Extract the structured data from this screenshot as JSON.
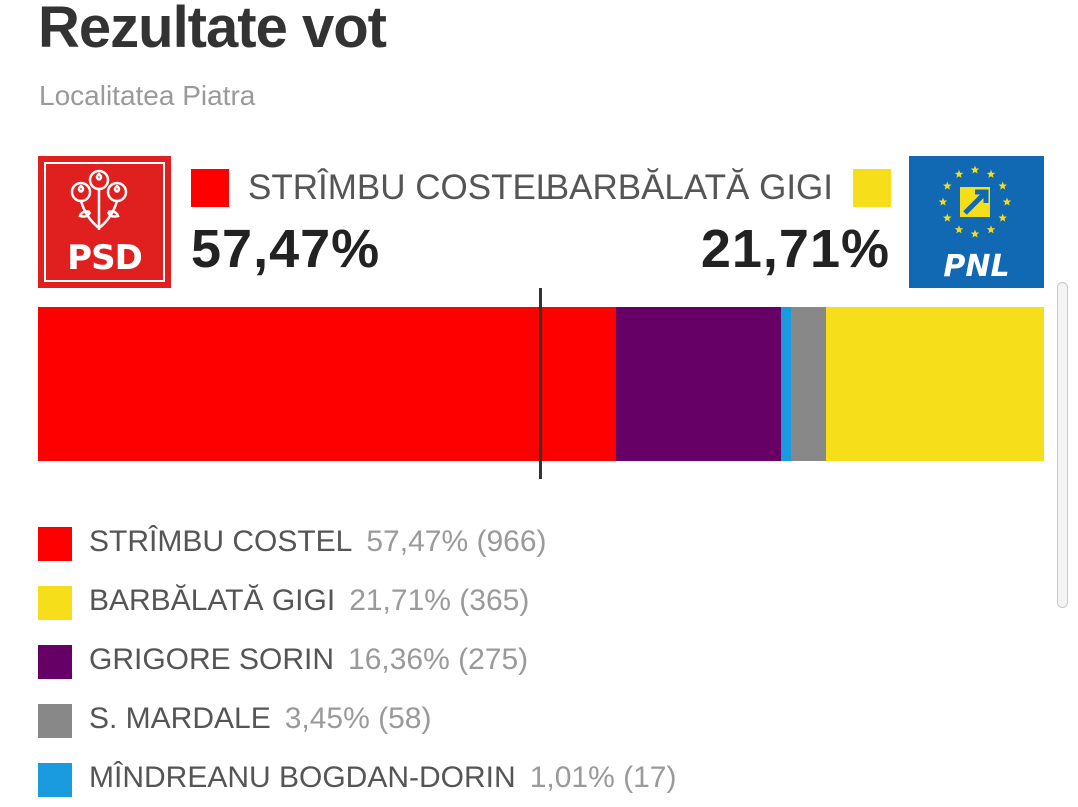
{
  "page": {
    "title": "Rezultate vot",
    "subtitle": "Localitatea Piatra"
  },
  "logos": {
    "left": {
      "text": "PSD",
      "color": "#e0201f",
      "icon": "roses-icon"
    },
    "right": {
      "text": "PNL",
      "color": "#1168b3",
      "icon": "eu-stars-arrow-icon"
    }
  },
  "headline": {
    "first": {
      "name": "STRÎMBU COSTEL",
      "percent": "57,47%",
      "color": "#ff0000"
    },
    "second": {
      "name": "BARBĂLATĂ GIGI",
      "percent": "21,71%",
      "color": "#f7de1a"
    }
  },
  "chart_data": {
    "type": "bar",
    "orientation": "horizontal-stacked",
    "segments": [
      {
        "name": "STRÎMBU COSTEL",
        "percent": 57.47,
        "votes": 966,
        "color": "#ff0000"
      },
      {
        "name": "GRIGORE SORIN",
        "percent": 16.36,
        "votes": 275,
        "color": "#660066"
      },
      {
        "name": "MÎNDREANU BOGDAN-DORIN",
        "percent": 1.01,
        "votes": 17,
        "color": "#1a9be0"
      },
      {
        "name": "S. MARDALE",
        "percent": 3.45,
        "votes": 58,
        "color": "#888888"
      },
      {
        "name": "BARBĂLATĂ GIGI",
        "percent": 21.71,
        "votes": 365,
        "color": "#f7de1a"
      }
    ],
    "majority_marker_percent": 50
  },
  "legend": [
    {
      "name": "STRÎMBU COSTEL",
      "stat": "57,47% (966)",
      "color": "#ff0000"
    },
    {
      "name": "BARBĂLATĂ GIGI",
      "stat": "21,71% (365)",
      "color": "#f7de1a"
    },
    {
      "name": "GRIGORE SORIN",
      "stat": "16,36% (275)",
      "color": "#660066"
    },
    {
      "name": "S. MARDALE",
      "stat": "3,45% (58)",
      "color": "#888888"
    },
    {
      "name": "MÎNDREANU BOGDAN-DORIN",
      "stat": "1,01% (17)",
      "color": "#1a9be0"
    }
  ]
}
